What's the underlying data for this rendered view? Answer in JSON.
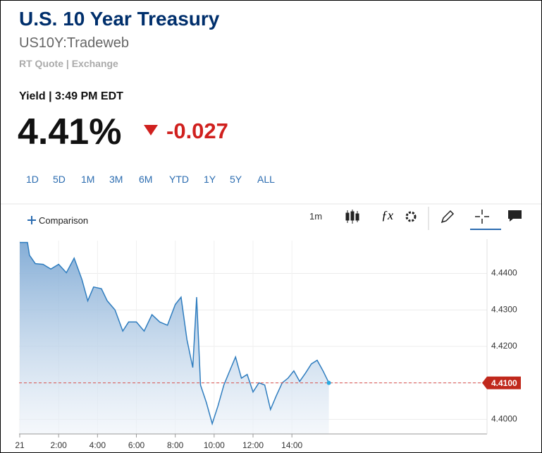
{
  "header": {
    "title": "U.S. 10 Year Treasury",
    "symbol": "US10Y:Tradeweb",
    "source": "RT Quote | Exchange"
  },
  "quote": {
    "label": "Yield | 3:49 PM EDT",
    "last": "4.41%",
    "change": "-0.027"
  },
  "ranges": [
    "1D",
    "5D",
    "1M",
    "3M",
    "6M",
    "YTD",
    "1Y",
    "5Y",
    "ALL"
  ],
  "toolbar": {
    "comparison": "Comparison",
    "interval": "1m"
  },
  "chart_data": {
    "type": "area",
    "color": "#2f7dbf",
    "x": [
      0,
      0.4,
      0.5,
      0.8,
      1.2,
      1.6,
      2.0,
      2.4,
      2.8,
      3.2,
      3.5,
      3.8,
      4.2,
      4.5,
      4.9,
      5.3,
      5.6,
      6.0,
      6.4,
      6.8,
      7.2,
      7.6,
      8.0,
      8.3,
      8.6,
      8.9,
      9.1,
      9.3,
      9.6,
      9.9,
      10.2,
      10.5,
      10.8,
      11.1,
      11.4,
      11.7,
      12.0,
      12.3,
      12.6,
      12.9,
      13.2,
      13.5,
      13.8,
      14.1,
      14.4,
      14.7,
      15.0,
      15.3,
      15.6,
      15.9
    ],
    "values": [
      4.4485,
      4.4485,
      4.445,
      4.4427,
      4.4425,
      4.4412,
      4.4425,
      4.4402,
      4.4442,
      4.4383,
      4.4325,
      4.4363,
      4.4358,
      4.4325,
      4.43,
      4.4242,
      4.4267,
      4.4267,
      4.4242,
      4.4287,
      4.4267,
      4.4258,
      4.4315,
      4.4335,
      4.4219,
      4.4142,
      4.4335,
      4.4094,
      4.4046,
      4.3988,
      4.4037,
      4.4094,
      4.4133,
      4.4171,
      4.4113,
      4.4123,
      4.4075,
      4.41,
      4.4094,
      4.4027,
      4.4065,
      4.41,
      4.4113,
      4.4133,
      4.4104,
      4.4127,
      4.4152,
      4.4162,
      4.4133,
      4.41
    ],
    "xlim": [
      0,
      24
    ],
    "xticks": [
      {
        "value": 0,
        "label": "21"
      },
      {
        "value": 2,
        "label": "2:00"
      },
      {
        "value": 4,
        "label": "4:00"
      },
      {
        "value": 6,
        "label": "6:00"
      },
      {
        "value": 8,
        "label": "8:00"
      },
      {
        "value": 10,
        "label": "10:00"
      },
      {
        "value": 12,
        "label": "12:00"
      },
      {
        "value": 14,
        "label": "14:00"
      }
    ],
    "ylim": [
      4.396,
      4.449
    ],
    "yticks": [
      {
        "value": 4.4,
        "label": "4.4000"
      },
      {
        "value": 4.41,
        "label": "4.4100"
      },
      {
        "value": 4.42,
        "label": "4.4200"
      },
      {
        "value": 4.43,
        "label": "4.4300"
      },
      {
        "value": 4.44,
        "label": "4.4400"
      }
    ],
    "price_line": {
      "value": 4.41,
      "label": "4.4100"
    },
    "grid": true
  }
}
